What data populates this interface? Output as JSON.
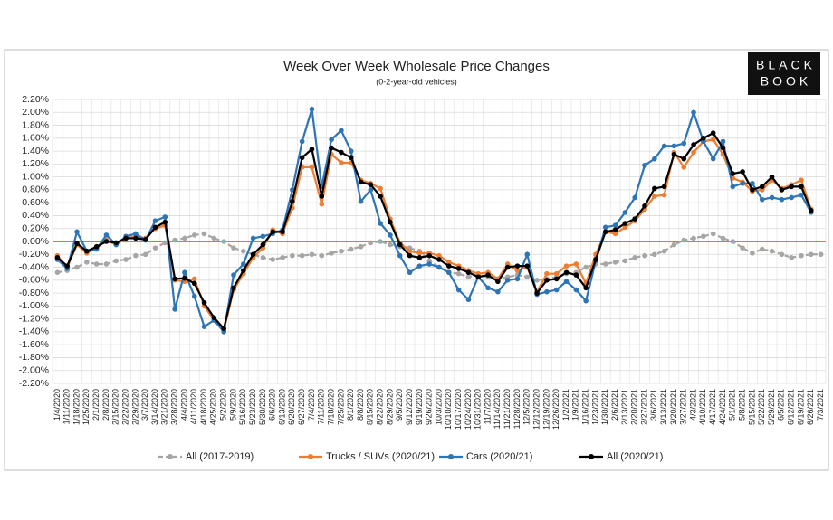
{
  "chart_data": {
    "type": "line",
    "title": "Week Over Week Wholesale Price Changes",
    "subtitle": "(0-2-year-old vehicles)",
    "logo": [
      "BLACK",
      "BOOK"
    ],
    "categories": [
      "1/4/2020",
      "1/11/2020",
      "1/18/2020",
      "1/25/2020",
      "2/1/2020",
      "2/8/2020",
      "2/15/2020",
      "2/22/2020",
      "2/29/2020",
      "3/7/2020",
      "3/14/2020",
      "3/21/2020",
      "3/28/2020",
      "4/4/2020",
      "4/11/2020",
      "4/18/2020",
      "4/25/2020",
      "5/2/2020",
      "5/9/2020",
      "5/16/2020",
      "5/23/2020",
      "5/30/2020",
      "6/6/2020",
      "6/13/2020",
      "6/20/2020",
      "6/27/2020",
      "7/4/2020",
      "7/11/2020",
      "7/18/2020",
      "7/25/2020",
      "8/1/2020",
      "8/8/2020",
      "8/15/2020",
      "8/22/2020",
      "8/29/2020",
      "9/5/2020",
      "9/12/2020",
      "9/19/2020",
      "9/26/2020",
      "10/3/2020",
      "10/10/2020",
      "10/17/2020",
      "10/24/2020",
      "10/31/2020",
      "11/7/2020",
      "11/14/2020",
      "11/21/2020",
      "11/28/2020",
      "12/5/2020",
      "12/12/2020",
      "12/19/2020",
      "12/26/2020",
      "1/2/2021",
      "1/9/2021",
      "1/16/2021",
      "1/23/2021",
      "1/30/2021",
      "2/6/2021",
      "2/13/2021",
      "2/20/2021",
      "2/27/2021",
      "3/6/2021",
      "3/13/2021",
      "3/20/2021",
      "3/27/2021",
      "4/3/2021",
      "4/10/2021",
      "4/17/2021",
      "4/24/2021",
      "5/1/2021",
      "5/8/2021",
      "5/15/2021",
      "5/22/2021",
      "5/29/2021",
      "6/5/2021",
      "6/12/2021",
      "6/19/2021",
      "6/26/2021",
      "7/3/2021"
    ],
    "series": [
      {
        "name": "All (2017-2019)",
        "color": "#a6a6a6",
        "dashed": true,
        "values": [
          -0.48,
          -0.45,
          -0.4,
          -0.32,
          -0.35,
          -0.35,
          -0.3,
          -0.28,
          -0.22,
          -0.2,
          -0.1,
          -0.02,
          0.02,
          0.05,
          0.1,
          0.12,
          0.05,
          0.0,
          -0.1,
          -0.15,
          -0.2,
          -0.25,
          -0.28,
          -0.25,
          -0.22,
          -0.22,
          -0.2,
          -0.22,
          -0.18,
          -0.15,
          -0.12,
          -0.08,
          -0.02,
          0.0,
          -0.05,
          -0.08,
          -0.1,
          -0.15,
          -0.3,
          -0.4,
          -0.48,
          -0.5,
          -0.55,
          -0.52,
          -0.55,
          -0.58,
          -0.55,
          -0.52,
          -0.55,
          -0.6,
          -0.58,
          -0.55,
          -0.5,
          -0.48,
          -0.4,
          -0.35,
          -0.35,
          -0.32,
          -0.3,
          -0.25,
          -0.22,
          -0.2,
          -0.15,
          -0.05,
          0.02,
          0.05,
          0.08,
          0.12,
          0.05,
          0.0,
          -0.1,
          -0.18,
          -0.12,
          -0.15,
          -0.2,
          -0.25,
          -0.22,
          -0.2,
          -0.2
        ]
      },
      {
        "name": "Trucks / SUVs (2020/21)",
        "color": "#ed7d31",
        "dashed": false,
        "values": [
          -0.22,
          -0.4,
          -0.05,
          -0.18,
          -0.1,
          0.02,
          -0.05,
          0.05,
          0.08,
          0.05,
          0.2,
          0.25,
          -0.6,
          -0.62,
          -0.58,
          -1.0,
          -1.22,
          -1.38,
          -0.75,
          -0.5,
          -0.25,
          -0.1,
          0.18,
          0.12,
          0.52,
          1.15,
          1.15,
          0.58,
          1.35,
          1.22,
          1.22,
          0.95,
          0.9,
          0.82,
          0.35,
          -0.02,
          -0.15,
          -0.18,
          -0.18,
          -0.22,
          -0.32,
          -0.38,
          -0.45,
          -0.5,
          -0.48,
          -0.58,
          -0.35,
          -0.45,
          -0.4,
          -0.78,
          -0.5,
          -0.5,
          -0.38,
          -0.35,
          -0.65,
          -0.2,
          0.15,
          0.12,
          0.22,
          0.32,
          0.5,
          0.7,
          0.72,
          1.38,
          1.15,
          1.38,
          1.55,
          1.58,
          1.35,
          0.98,
          0.92,
          0.78,
          0.8,
          0.95,
          0.82,
          0.88,
          0.95,
          0.5,
          null
        ]
      },
      {
        "name": "Cars (2020/21)",
        "color": "#2e75b6",
        "dashed": false,
        "values": [
          -0.28,
          -0.42,
          0.15,
          -0.15,
          -0.12,
          0.1,
          -0.05,
          0.08,
          0.12,
          0.02,
          0.32,
          0.38,
          -1.05,
          -0.48,
          -0.85,
          -1.32,
          -1.22,
          -1.4,
          -0.52,
          -0.35,
          0.05,
          0.08,
          0.12,
          0.18,
          0.8,
          1.55,
          2.05,
          0.85,
          1.58,
          1.72,
          1.4,
          0.62,
          0.8,
          0.28,
          0.1,
          -0.22,
          -0.48,
          -0.38,
          -0.35,
          -0.4,
          -0.48,
          -0.75,
          -0.9,
          -0.55,
          -0.72,
          -0.78,
          -0.6,
          -0.58,
          -0.2,
          -0.82,
          -0.78,
          -0.75,
          -0.62,
          -0.75,
          -0.92,
          -0.3,
          0.22,
          0.25,
          0.45,
          0.68,
          1.18,
          1.28,
          1.48,
          1.48,
          1.52,
          2.0,
          1.55,
          1.28,
          1.55,
          0.85,
          0.9,
          0.9,
          0.65,
          0.68,
          0.65,
          0.68,
          0.72,
          0.45,
          null
        ]
      },
      {
        "name": "All (2020/21)",
        "color": "#000000",
        "dashed": false,
        "values": [
          -0.25,
          -0.38,
          -0.03,
          -0.15,
          -0.08,
          0.0,
          -0.02,
          0.05,
          0.05,
          0.03,
          0.22,
          0.3,
          -0.58,
          -0.57,
          -0.65,
          -0.95,
          -1.18,
          -1.35,
          -0.72,
          -0.45,
          -0.2,
          -0.05,
          0.15,
          0.15,
          0.62,
          1.3,
          1.43,
          0.7,
          1.45,
          1.38,
          1.3,
          0.92,
          0.88,
          0.7,
          0.3,
          -0.05,
          -0.22,
          -0.25,
          -0.22,
          -0.28,
          -0.38,
          -0.42,
          -0.48,
          -0.55,
          -0.52,
          -0.62,
          -0.4,
          -0.38,
          -0.38,
          -0.8,
          -0.6,
          -0.58,
          -0.48,
          -0.52,
          -0.72,
          -0.28,
          0.15,
          0.18,
          0.28,
          0.35,
          0.55,
          0.82,
          0.85,
          1.35,
          1.28,
          1.5,
          1.6,
          1.68,
          1.45,
          1.05,
          1.08,
          0.8,
          0.85,
          1.0,
          0.8,
          0.85,
          0.85,
          0.48,
          null
        ]
      }
    ],
    "ylim": [
      -2.2,
      2.2
    ],
    "yticks": [
      {
        "value": 2.2,
        "label": "2.20%"
      },
      {
        "value": 2.0,
        "label": "2.00%"
      },
      {
        "value": 1.8,
        "label": "1.80%"
      },
      {
        "value": 1.6,
        "label": "1.60%"
      },
      {
        "value": 1.4,
        "label": "1.40%"
      },
      {
        "value": 1.2,
        "label": "1.20%"
      },
      {
        "value": 1.0,
        "label": "1.00%"
      },
      {
        "value": 0.8,
        "label": "0.80%"
      },
      {
        "value": 0.6,
        "label": "0.60%"
      },
      {
        "value": 0.4,
        "label": "0.40%"
      },
      {
        "value": 0.2,
        "label": "0.20%"
      },
      {
        "value": 0,
        "label": "0.00%"
      },
      {
        "value": -0.2,
        "label": "-0.20%"
      },
      {
        "value": -0.4,
        "label": "-0.40%"
      },
      {
        "value": -0.6,
        "label": "-0.60%"
      },
      {
        "value": -0.8,
        "label": "-0.80%"
      },
      {
        "value": -1.0,
        "label": "-1.00%"
      },
      {
        "value": -1.2,
        "label": "-1.20%"
      },
      {
        "value": -1.4,
        "label": "-1.40%"
      },
      {
        "value": -1.6,
        "label": "-1.60%"
      },
      {
        "value": -1.8,
        "label": "-1.80%"
      },
      {
        "value": -2.0,
        "label": "-2.00%"
      },
      {
        "value": -2.2,
        "label": "-2.20%"
      }
    ],
    "reference_line": {
      "value": 0,
      "color": "#ff0000"
    },
    "grid": true,
    "legend": "bottom"
  }
}
